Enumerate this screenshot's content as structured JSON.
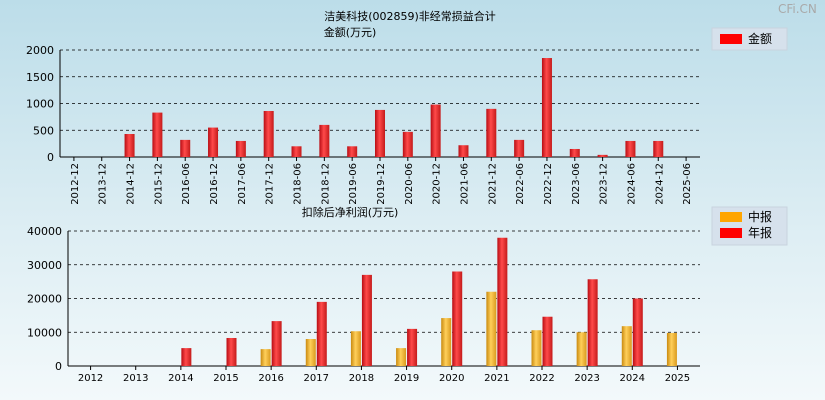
{
  "watermark": "CFi.CN",
  "chart_data": [
    {
      "type": "bar",
      "title": "洁美科技(002859)非经常损益合计",
      "subtitle": "金额(万元)",
      "categories": [
        "2012-12",
        "2013-12",
        "2014-12",
        "2015-12",
        "2016-06",
        "2016-12",
        "2017-06",
        "2017-12",
        "2018-06",
        "2018-12",
        "2019-06",
        "2019-12",
        "2020-06",
        "2020-12",
        "2021-06",
        "2021-12",
        "2022-06",
        "2022-12",
        "2023-06",
        "2023-12",
        "2024-06",
        "2024-12",
        "2025-06"
      ],
      "series": [
        {
          "name": "金额",
          "color": "#ff0000",
          "values": [
            0,
            0,
            430,
            830,
            320,
            550,
            300,
            860,
            200,
            600,
            200,
            880,
            470,
            980,
            220,
            900,
            320,
            1850,
            150,
            40,
            300,
            300,
            0
          ]
        }
      ],
      "yticks": [
        0,
        500,
        1000,
        1500,
        2000
      ],
      "ylim": [
        0,
        2000
      ],
      "grid": true,
      "legend": "top-right"
    },
    {
      "type": "bar",
      "title": "扣除后净利润(万元)",
      "categories": [
        "2012",
        "2013",
        "2014",
        "2015",
        "2016",
        "2017",
        "2018",
        "2019",
        "2020",
        "2021",
        "2022",
        "2023",
        "2024",
        "2025"
      ],
      "series": [
        {
          "name": "中报",
          "color": "#ffa500",
          "values": [
            0,
            0,
            0,
            0,
            5000,
            8000,
            10300,
            5300,
            14200,
            22000,
            10600,
            10000,
            11800,
            9800
          ]
        },
        {
          "name": "年报",
          "color": "#ff0000",
          "values": [
            0,
            0,
            5300,
            8300,
            13300,
            19000,
            27000,
            11000,
            28000,
            38000,
            14600,
            25700,
            20000,
            null
          ]
        }
      ],
      "yticks": [
        0,
        10000,
        20000,
        30000,
        40000
      ],
      "ylim": [
        0,
        40000
      ],
      "grid": true,
      "legend": "top-right"
    }
  ]
}
